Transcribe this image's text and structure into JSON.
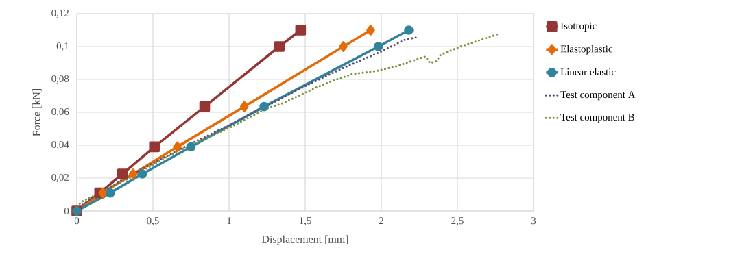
{
  "chart_data": {
    "type": "line",
    "xlabel": "Displacement [mm]",
    "ylabel": "Force [kN]",
    "xlim": [
      0,
      3
    ],
    "ylim": [
      0,
      0.12
    ],
    "xticks": [
      0,
      {
        "value": 0.5,
        "label": "0,5"
      },
      1,
      {
        "value": 1.5,
        "label": "1,5"
      },
      2,
      {
        "value": 2.5,
        "label": "2,5"
      },
      3
    ],
    "yticks": [
      0,
      {
        "value": 0.02,
        "label": "0,02"
      },
      {
        "value": 0.04,
        "label": "0,04"
      },
      {
        "value": 0.06,
        "label": "0,06"
      },
      {
        "value": 0.08,
        "label": "0,08"
      },
      {
        "value": 0.1,
        "label": "0,1"
      },
      {
        "value": 0.12,
        "label": "0,12"
      }
    ],
    "grid": true,
    "legend": "right",
    "series": [
      {
        "name": "Isotropic",
        "color": "#943634",
        "marker": "square",
        "line_style": "solid",
        "x": [
          0,
          0.15,
          0.3,
          0.51,
          0.84,
          1.33,
          1.47
        ],
        "values": [
          0,
          0.011,
          0.0225,
          0.039,
          0.0635,
          0.1,
          0.11
        ]
      },
      {
        "name": "Elastoplastic",
        "color": "#e36c09",
        "marker": "diamond",
        "line_style": "solid",
        "x": [
          0,
          0.17,
          0.37,
          0.66,
          1.1,
          1.75,
          1.93
        ],
        "values": [
          0,
          0.011,
          0.0225,
          0.039,
          0.0635,
          0.1,
          0.11
        ]
      },
      {
        "name": "Linear elastic",
        "color": "#31849b",
        "marker": "circle",
        "line_style": "solid",
        "x": [
          0,
          0.22,
          0.43,
          0.75,
          1.23,
          1.98,
          2.18
        ],
        "values": [
          0,
          0.011,
          0.0225,
          0.039,
          0.0635,
          0.1,
          0.11
        ]
      },
      {
        "name": "Test component A",
        "color": "#5f497a",
        "marker": "none",
        "line_style": "dotted",
        "x": [
          0,
          0.1,
          0.3,
          0.5,
          0.75,
          1,
          1.25,
          1.5,
          1.75,
          2,
          2.15,
          2.25
        ],
        "values": [
          0.001,
          0.008,
          0.019,
          0.029,
          0.041,
          0.052,
          0.064,
          0.076,
          0.087,
          0.097,
          0.104,
          0.106
        ]
      },
      {
        "name": "Test component B",
        "color": "#77933c",
        "marker": "none",
        "line_style": "dotted",
        "x": [
          0,
          0.04,
          0.32,
          0.64,
          1.0,
          1.25,
          1.35,
          1.57,
          1.67,
          1.81,
          1.96,
          2.1,
          2.29,
          2.32,
          2.36,
          2.39,
          2.52,
          2.78
        ],
        "values": [
          0.003,
          0.006,
          0.0187,
          0.0354,
          0.0505,
          0.0625,
          0.0654,
          0.075,
          0.0788,
          0.0833,
          0.085,
          0.088,
          0.094,
          0.09,
          0.091,
          0.095,
          0.1,
          0.108
        ]
      }
    ]
  }
}
